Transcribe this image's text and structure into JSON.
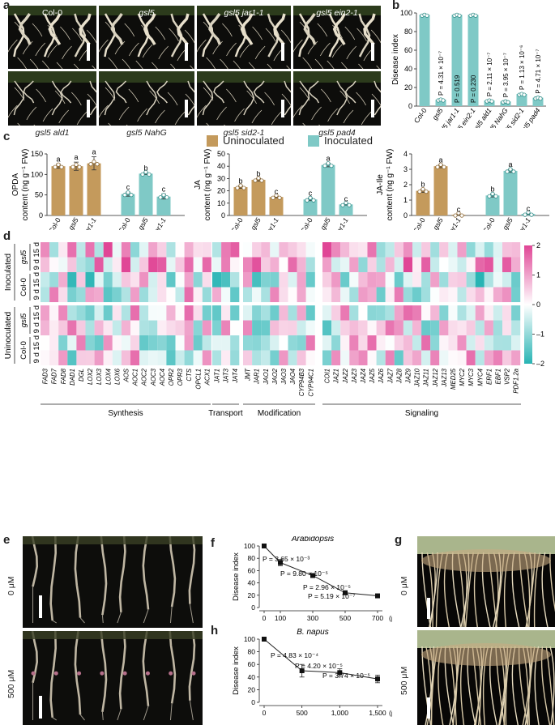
{
  "panel_labels": {
    "a": "a",
    "b": "b",
    "c": "c",
    "d": "d",
    "e": "e",
    "f": "f",
    "g": "g",
    "h": "h"
  },
  "panel_a": {
    "top": [
      "Col-0",
      "gsl5",
      "gsl5 jar1-1",
      "gsl5 ein2-1"
    ],
    "bottom": [
      "gsl5 ald1",
      "gsl5 NahG",
      "gsl5 sid2-1",
      "gsl5 pad4"
    ]
  },
  "panel_e": {
    "labels": [
      "0 μM",
      "500 μM"
    ]
  },
  "panel_g": {
    "labels": [
      "0 μM",
      "500 μM"
    ]
  },
  "legend": {
    "uninoculated": "Uninoculated",
    "inoculated": "Inoculated",
    "uninoc_color": "#c49a5c",
    "inoc_color": "#7fc9c6"
  },
  "chart_data": [
    {
      "id": "b",
      "type": "bar",
      "ylabel": "Disease index",
      "ylim": [
        0,
        100
      ],
      "yticks": [
        0,
        20,
        40,
        60,
        80,
        100
      ],
      "categories": [
        "Col-0",
        "gsl5",
        "gsl5 jar1-1",
        "gsl5 ein2-1",
        "gsl5 ald1",
        "gsl5 NahG",
        "gsl5 sid2-1",
        "gsl5 pad4"
      ],
      "values": [
        98,
        7,
        98,
        98,
        6,
        5,
        13,
        9
      ],
      "pvalues": [
        "",
        "P = 4.31 × 10⁻⁷",
        "P = 0.519",
        "P = 0.230",
        "P = 2.11 × 10⁻⁷",
        "P = 3.95 × 10⁻⁷",
        "P = 1.13 × 10⁻⁶",
        "P = 4.71 × 10⁻⁷"
      ]
    },
    {
      "id": "c1",
      "type": "bar",
      "ylabel": "OPDA content (ng g⁻¹ FW)",
      "ylim": [
        0,
        150
      ],
      "yticks": [
        0,
        50,
        100,
        150
      ],
      "categories": [
        "Col-0",
        "gsl5",
        "jar1-1",
        "Col-0",
        "gsl5",
        "jar1-1"
      ],
      "values": [
        120,
        120,
        127,
        52,
        102,
        46
      ],
      "errors": [
        5,
        10,
        16,
        5,
        2,
        6
      ],
      "letters": [
        "a",
        "a",
        "a",
        "c",
        "b",
        "c"
      ]
    },
    {
      "id": "c2",
      "type": "bar",
      "ylabel": "JA content (ng g⁻¹ FW)",
      "ylim": [
        0,
        50
      ],
      "yticks": [
        0,
        10,
        20,
        30,
        40,
        50
      ],
      "categories": [
        "Col-0",
        "gsl5",
        "jar1-1",
        "Col-0",
        "gsl5",
        "jar1-1"
      ],
      "values": [
        23,
        29,
        15,
        13,
        41,
        9
      ],
      "errors": [
        1,
        1,
        0.5,
        1,
        1.5,
        0.5
      ],
      "letters": [
        "b",
        "b",
        "c",
        "c",
        "a",
        "c"
      ]
    },
    {
      "id": "c3",
      "type": "bar",
      "ylabel": "JA-Ile content (ng g⁻¹ FW)",
      "ylim": [
        0,
        4
      ],
      "yticks": [
        0,
        1,
        2,
        3,
        4
      ],
      "categories": [
        "Col-0",
        "gsl5",
        "jar1-1",
        "Col-0",
        "gsl5",
        "jar1-1"
      ],
      "values": [
        1.6,
        3.2,
        0.05,
        1.3,
        2.9,
        0.1
      ],
      "errors": [
        0.1,
        0.1,
        0.03,
        0.1,
        0.1,
        0.03
      ],
      "letters": [
        "b",
        "a",
        "c",
        "b",
        "a",
        "c"
      ]
    },
    {
      "id": "d",
      "type": "heatmap",
      "legend_ticks": [
        2,
        1,
        0,
        -1,
        -2
      ],
      "legend_labels": [
        "2",
        "1",
        "0",
        "–1",
        "–2"
      ],
      "group_labels": [
        "Inoculated",
        "Uninoculated"
      ],
      "genotype_labels": [
        "gsl5",
        "Col-0",
        "gsl5",
        "Col-0"
      ],
      "row_labels": [
        "15 d",
        "9 d",
        "15 d",
        "9 d",
        "15 d",
        "9 d",
        "15 d",
        "9 d"
      ],
      "categories_bottom": [
        "Synthesis",
        "Transport",
        "Modification",
        "Signaling"
      ],
      "genes": [
        "FAD3",
        "FAD7",
        "FAD8",
        "DAD1",
        "DGL",
        "LOX2",
        "LOX3",
        "LOX4",
        "LOX6",
        "AOS",
        "AOC1",
        "AOC2",
        "AOC3",
        "AOC4",
        "OPR2",
        "OPR3",
        "CTS",
        "OPCL1",
        "ACX1",
        "JAT1",
        "JAT3",
        "JAT4",
        "JMT",
        "JAR1",
        "JAO1",
        "JAO2",
        "JAO3",
        "JAO4",
        "CYP94B3",
        "CYP94C1",
        "COI1",
        "JAZ1",
        "JAZ2",
        "JAZ3",
        "JAZ4",
        "JAZ5",
        "JAZ6",
        "JAZ7",
        "JAZ8",
        "JAZ9",
        "JAZ10",
        "JAZ11",
        "JAZ12",
        "JAZ13",
        "MED25",
        "MYC2",
        "MYC3",
        "MYC4",
        "ERF1",
        "EBF1",
        "VSP2",
        "PDF1.2a"
      ]
    },
    {
      "id": "f",
      "type": "line",
      "title": "Arabidopsis",
      "ylabel": "Disease index",
      "xunit": "(μM)",
      "x": [
        0,
        100,
        300,
        500,
        700
      ],
      "values": [
        100,
        73,
        52,
        24,
        19
      ],
      "errors": [
        0,
        5,
        3,
        3,
        2
      ],
      "ylim": [
        0,
        100
      ],
      "yticks": [
        0,
        20,
        40,
        60,
        80,
        100
      ],
      "xticks": [
        0,
        100,
        300,
        500,
        700
      ],
      "pvalues": [
        "P = 3.65 × 10⁻³",
        "P = 9.80 × 10⁻⁵",
        "P = 2.96 × 10⁻⁵",
        "P = 5.19 × 10⁻⁷"
      ]
    },
    {
      "id": "h",
      "type": "line",
      "title": "B. napus",
      "ylabel": "Disease index",
      "xunit": "(μM)",
      "x": [
        0,
        500,
        1000,
        1500
      ],
      "values": [
        100,
        50,
        47,
        37
      ],
      "errors": [
        0,
        10,
        6,
        6
      ],
      "ylim": [
        0,
        100
      ],
      "yticks": [
        0,
        20,
        40,
        60,
        80,
        100
      ],
      "xticks": [
        0,
        500,
        1000,
        1500
      ],
      "xtick_labels": [
        "0",
        "500",
        "1,000",
        "1,500"
      ],
      "pvalues": [
        "P = 4.83 × 10⁻⁴",
        "P = 4.20 × 10⁻⁵",
        "P = 3.74 × 10⁻⁵"
      ]
    }
  ]
}
